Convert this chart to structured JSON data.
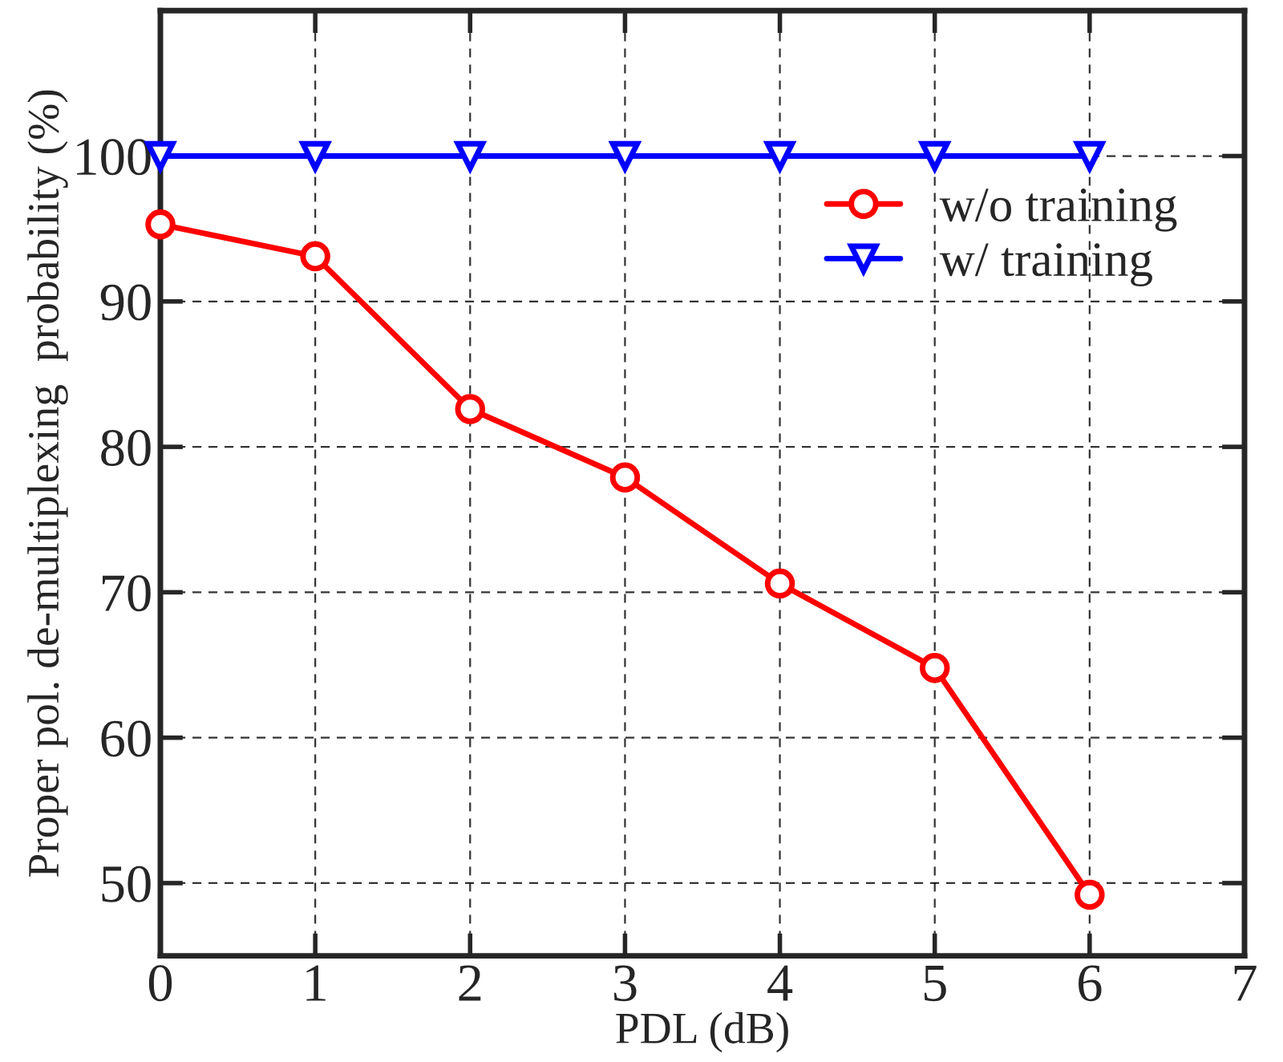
{
  "chart_data": {
    "type": "line",
    "xlabel": "PDL (dB)",
    "ylabel": "Proper pol. de-multiplexing  probability (%)",
    "x": [
      0,
      1,
      2,
      3,
      4,
      5,
      6
    ],
    "series": [
      {
        "name": "w/o training",
        "color": "#ff0000",
        "marker": "circle",
        "values": [
          95.3,
          93.1,
          82.6,
          77.9,
          70.6,
          64.8,
          49.2
        ]
      },
      {
        "name": "w/ training",
        "color": "#0000ff",
        "marker": "triangle",
        "values": [
          100,
          100,
          100,
          100,
          100,
          100,
          100
        ]
      }
    ],
    "xlim": [
      0,
      7
    ],
    "xticks": [
      0,
      1,
      2,
      3,
      4,
      5,
      6,
      7
    ],
    "ylim": [
      45,
      110
    ],
    "yticks": [
      50,
      60,
      70,
      80,
      90,
      100
    ],
    "grid": true,
    "legend": "top right",
    "line_style": "solid"
  }
}
